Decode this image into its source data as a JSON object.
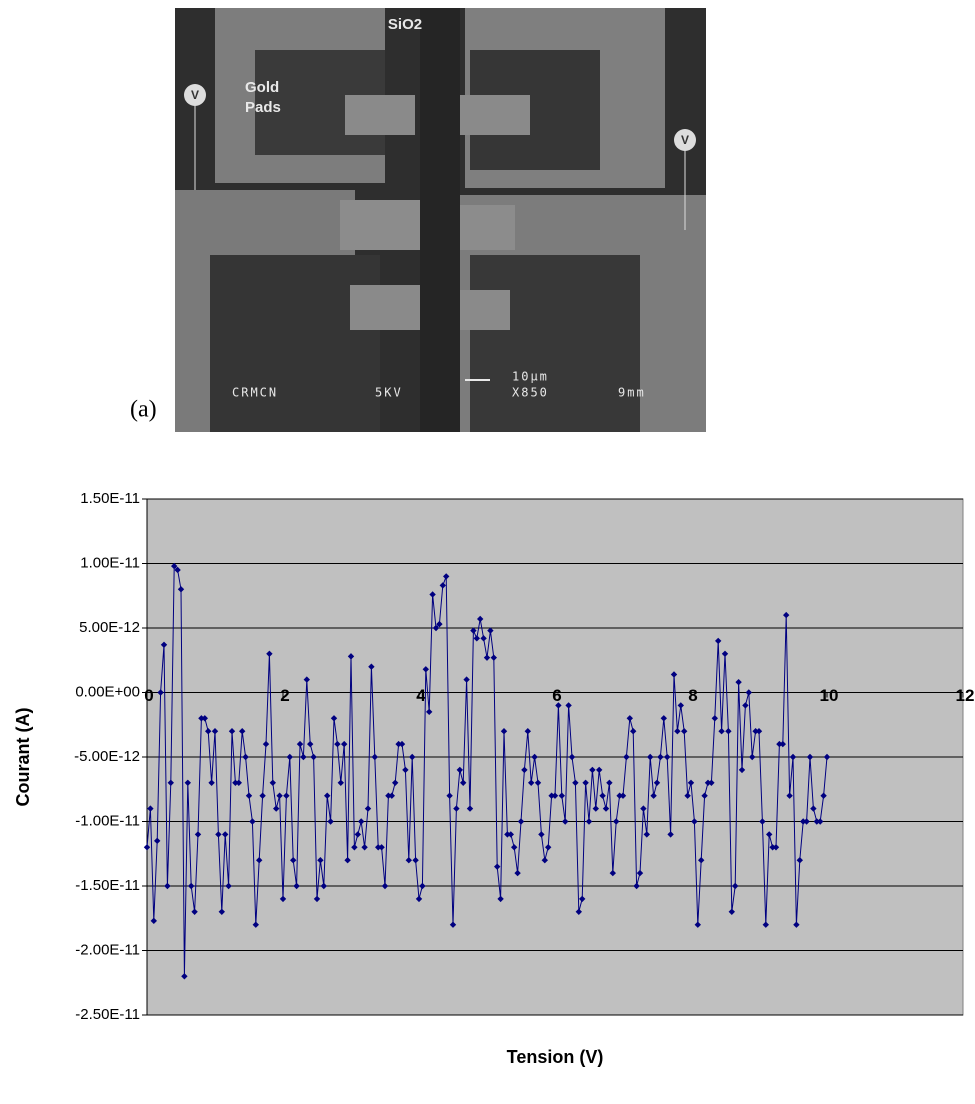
{
  "figure_label": "(a)",
  "image": {
    "labels": [
      "SiO2",
      "Gold",
      "Pads",
      "V",
      "V"
    ],
    "scale_bar": [
      "CRMCN",
      "5KV",
      "10µm",
      "X850",
      "9mm"
    ]
  },
  "chart_data": {
    "type": "line",
    "xlabel": "Tension (V)",
    "ylabel": "Courant (A)",
    "color": "#000080",
    "grid": true,
    "plot_background": "#c0c0c0",
    "xlim": [
      0,
      12
    ],
    "xticks": [
      0,
      2,
      4,
      6,
      8,
      10,
      12
    ],
    "ylim": [
      -2.5e-11,
      1.5e-11
    ],
    "yticks": [
      {
        "value": -2.5e-11,
        "label": "-2.50E-11"
      },
      {
        "value": -2e-11,
        "label": "-2.00E-11"
      },
      {
        "value": -1.5e-11,
        "label": "-1.50E-11"
      },
      {
        "value": -1e-11,
        "label": "-1.00E-11"
      },
      {
        "value": -5e-12,
        "label": "-5.00E-12"
      },
      {
        "value": 0,
        "label": "0.00E+00"
      },
      {
        "value": 5e-12,
        "label": "5.00E-12"
      },
      {
        "value": 1e-11,
        "label": "1.00E-11"
      },
      {
        "value": 1.5e-11,
        "label": "1.50E-11"
      }
    ],
    "x": [
      0,
      0.05,
      0.1,
      0.15,
      0.2,
      0.25,
      0.3,
      0.35,
      0.4,
      0.45,
      0.5,
      0.55,
      0.6,
      0.65,
      0.7,
      0.75,
      0.8,
      0.85,
      0.9,
      0.95,
      1,
      1.05,
      1.1,
      1.15,
      1.2,
      1.25,
      1.3,
      1.35,
      1.4,
      1.45,
      1.5,
      1.55,
      1.6,
      1.65,
      1.7,
      1.75,
      1.8,
      1.85,
      1.9,
      1.95,
      2,
      2.05,
      2.1,
      2.15,
      2.2,
      2.25,
      2.3,
      2.35,
      2.4,
      2.45,
      2.5,
      2.55,
      2.6,
      2.65,
      2.7,
      2.75,
      2.8,
      2.85,
      2.9,
      2.95,
      3,
      3.05,
      3.1,
      3.15,
      3.2,
      3.25,
      3.3,
      3.35,
      3.4,
      3.45,
      3.5,
      3.55,
      3.6,
      3.65,
      3.7,
      3.75,
      3.8,
      3.85,
      3.9,
      3.95,
      4,
      4.05,
      4.1,
      4.15,
      4.2,
      4.25,
      4.3,
      4.35,
      4.4,
      4.45,
      4.5,
      4.55,
      4.6,
      4.65,
      4.7,
      4.75,
      4.8,
      4.85,
      4.9,
      4.95,
      5,
      5.05,
      5.1,
      5.15,
      5.2,
      5.25,
      5.3,
      5.35,
      5.4,
      5.45,
      5.5,
      5.55,
      5.6,
      5.65,
      5.7,
      5.75,
      5.8,
      5.85,
      5.9,
      5.95,
      6,
      6.05,
      6.1,
      6.15,
      6.2,
      6.25,
      6.3,
      6.35,
      6.4,
      6.45,
      6.5,
      6.55,
      6.6,
      6.65,
      6.7,
      6.75,
      6.8,
      6.85,
      6.9,
      6.95,
      7,
      7.05,
      7.1,
      7.15,
      7.2,
      7.25,
      7.3,
      7.35,
      7.4,
      7.45,
      7.5,
      7.55,
      7.6,
      7.65,
      7.7,
      7.75,
      7.8,
      7.85,
      7.9,
      7.95,
      8,
      8.05,
      8.1,
      8.15,
      8.2,
      8.25,
      8.3,
      8.35,
      8.4,
      8.45,
      8.5,
      8.55,
      8.6,
      8.65,
      8.7,
      8.75,
      8.8,
      8.85,
      8.9,
      8.95,
      9,
      9.05,
      9.1,
      9.15,
      9.2,
      9.25,
      9.3,
      9.35,
      9.4,
      9.45,
      9.5,
      9.55,
      9.6,
      9.65,
      9.7,
      9.75,
      9.8,
      9.85,
      9.9,
      9.95,
      10
    ],
    "values": [
      -1.2e-11,
      -9e-12,
      -1.77e-11,
      -1.15e-11,
      0,
      3.7e-12,
      -1.5e-11,
      -7e-12,
      9.8e-12,
      9.5e-12,
      8e-12,
      -2.2e-11,
      -7e-12,
      -1.5e-11,
      -1.7e-11,
      -1.1e-11,
      -2e-12,
      -2e-12,
      -3e-12,
      -7e-12,
      -3e-12,
      -1.1e-11,
      -1.7e-11,
      -1.1e-11,
      -1.5e-11,
      -3e-12,
      -7e-12,
      -7e-12,
      -3e-12,
      -5e-12,
      -8e-12,
      -1e-11,
      -1.8e-11,
      -1.3e-11,
      -8e-12,
      -4e-12,
      3e-12,
      -7e-12,
      -9e-12,
      -8e-12,
      -1.6e-11,
      -8e-12,
      -5e-12,
      -1.3e-11,
      -1.5e-11,
      -4e-12,
      -5e-12,
      1e-12,
      -4e-12,
      -5e-12,
      -1.6e-11,
      -1.3e-11,
      -1.5e-11,
      -8e-12,
      -1e-11,
      -2e-12,
      -4e-12,
      -7e-12,
      -4e-12,
      -1.3e-11,
      2.8e-12,
      -1.2e-11,
      -1.1e-11,
      -1e-11,
      -1.2e-11,
      -9e-12,
      2e-12,
      -5e-12,
      -1.2e-11,
      -1.2e-11,
      -1.5e-11,
      -8e-12,
      -8e-12,
      -7e-12,
      -4e-12,
      -4e-12,
      -6e-12,
      -1.3e-11,
      -5e-12,
      -1.3e-11,
      -1.6e-11,
      -1.5e-11,
      1.8e-12,
      -1.5e-12,
      7.6e-12,
      5e-12,
      5.3e-12,
      8.3e-12,
      9e-12,
      -8e-12,
      -1.8e-11,
      -9e-12,
      -6e-12,
      -7e-12,
      1e-12,
      -9e-12,
      4.8e-12,
      4.2e-12,
      5.7e-12,
      4.2e-12,
      2.7e-12,
      4.8e-12,
      2.7e-12,
      -1.35e-11,
      -1.6e-11,
      -3e-12,
      -1.1e-11,
      -1.1e-11,
      -1.2e-11,
      -1.4e-11,
      -1e-11,
      -6e-12,
      -3e-12,
      -7e-12,
      -5e-12,
      -7e-12,
      -1.1e-11,
      -1.3e-11,
      -1.2e-11,
      -8e-12,
      -8e-12,
      -1e-12,
      -8e-12,
      -1e-11,
      -1e-12,
      -5e-12,
      -7e-12,
      -1.7e-11,
      -1.6e-11,
      -7e-12,
      -1e-11,
      -6e-12,
      -9e-12,
      -6e-12,
      -8e-12,
      -9e-12,
      -7e-12,
      -1.4e-11,
      -1e-11,
      -8e-12,
      -8e-12,
      -5e-12,
      -2e-12,
      -3e-12,
      -1.5e-11,
      -1.4e-11,
      -9e-12,
      -1.1e-11,
      -5e-12,
      -8e-12,
      -7e-12,
      -5e-12,
      -2e-12,
      -5e-12,
      -1.1e-11,
      1.4e-12,
      -3e-12,
      -1e-12,
      -3e-12,
      -8e-12,
      -7e-12,
      -1e-11,
      -1.8e-11,
      -1.3e-11,
      -8e-12,
      -7e-12,
      -7e-12,
      -2e-12,
      4e-12,
      -3e-12,
      3e-12,
      -3e-12,
      -1.7e-11,
      -1.5e-11,
      8e-13,
      -6e-12,
      -1e-12,
      0,
      -5e-12,
      -3e-12,
      -3e-12,
      -1e-11,
      -1.8e-11,
      -1.1e-11,
      -1.2e-11,
      -1.2e-11,
      -4e-12,
      -4e-12,
      6e-12,
      -8e-12,
      -5e-12,
      -1.8e-11,
      -1.3e-11,
      -1e-11,
      -1e-11,
      -5e-12,
      -9e-12,
      -1e-11,
      -1e-11,
      -8e-12,
      -5e-12
    ]
  }
}
